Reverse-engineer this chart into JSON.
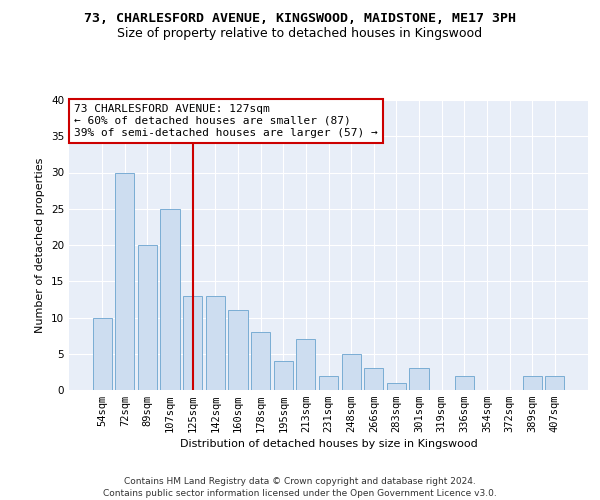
{
  "title_line1": "73, CHARLESFORD AVENUE, KINGSWOOD, MAIDSTONE, ME17 3PH",
  "title_line2": "Size of property relative to detached houses in Kingswood",
  "xlabel": "Distribution of detached houses by size in Kingswood",
  "ylabel": "Number of detached properties",
  "categories": [
    "54sqm",
    "72sqm",
    "89sqm",
    "107sqm",
    "125sqm",
    "142sqm",
    "160sqm",
    "178sqm",
    "195sqm",
    "213sqm",
    "231sqm",
    "248sqm",
    "266sqm",
    "283sqm",
    "301sqm",
    "319sqm",
    "336sqm",
    "354sqm",
    "372sqm",
    "389sqm",
    "407sqm"
  ],
  "values": [
    10,
    30,
    20,
    25,
    13,
    13,
    11,
    8,
    4,
    7,
    2,
    5,
    3,
    1,
    3,
    0,
    2,
    0,
    0,
    2,
    2
  ],
  "bar_color": "#cdddf0",
  "bar_edge_color": "#7aadd4",
  "highlight_line_color": "#cc0000",
  "annotation_text_line1": "73 CHARLESFORD AVENUE: 127sqm",
  "annotation_text_line2": "← 60% of detached houses are smaller (87)",
  "annotation_text_line3": "39% of semi-detached houses are larger (57) →",
  "annotation_box_color": "#ffffff",
  "annotation_box_edge": "#cc0000",
  "ylim": [
    0,
    40
  ],
  "yticks": [
    0,
    5,
    10,
    15,
    20,
    25,
    30,
    35,
    40
  ],
  "bg_color": "#e8eef8",
  "grid_color": "#ffffff",
  "title_fontsize": 9.5,
  "subtitle_fontsize": 9,
  "axis_label_fontsize": 8,
  "tick_fontsize": 7.5,
  "footer_fontsize": 6.5,
  "annotation_fontsize": 8,
  "footer_text": "Contains HM Land Registry data © Crown copyright and database right 2024.\nContains public sector information licensed under the Open Government Licence v3.0."
}
